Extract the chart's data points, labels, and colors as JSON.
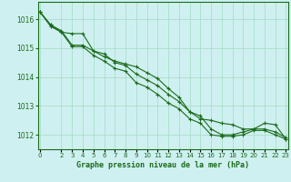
{
  "xlabel": "Graphe pression niveau de la mer (hPa)",
  "background_color": "#cff0f0",
  "grid_color": "#aaddcc",
  "line_color": "#1a6b1a",
  "x_ticks": [
    0,
    2,
    3,
    4,
    5,
    6,
    7,
    8,
    9,
    10,
    11,
    12,
    13,
    14,
    15,
    16,
    17,
    18,
    19,
    20,
    21,
    22,
    23
  ],
  "ylim": [
    1011.5,
    1016.6
  ],
  "xlim": [
    -0.2,
    23.2
  ],
  "series": [
    [
      1016.25,
      1015.8,
      1015.6,
      1015.1,
      1015.1,
      1014.9,
      1014.8,
      1014.5,
      1014.4,
      1014.1,
      1013.9,
      1013.7,
      1013.4,
      1013.15,
      1012.8,
      1012.65,
      1012.2,
      1012.0,
      1012.0,
      1012.1,
      1012.2,
      1012.2,
      1012.1,
      1011.9
    ],
    [
      1016.25,
      1015.75,
      1015.55,
      1015.05,
      1015.05,
      1014.75,
      1014.55,
      1014.3,
      1014.2,
      1013.8,
      1013.65,
      1013.4,
      1013.1,
      1012.9,
      1012.55,
      1012.4,
      1012.0,
      1011.95,
      1011.95,
      1012.0,
      1012.15,
      1012.15,
      1012.0,
      1011.85
    ],
    [
      1016.25,
      1015.8,
      1015.55,
      1015.5,
      1015.5,
      1014.9,
      1014.7,
      1014.55,
      1014.45,
      1014.35,
      1014.15,
      1013.95,
      1013.6,
      1013.3,
      1012.8,
      1012.55,
      1012.5,
      1012.4,
      1012.35,
      1012.2,
      1012.2,
      1012.4,
      1012.35,
      1011.85
    ]
  ],
  "yticks": [
    1012,
    1013,
    1014,
    1015,
    1016
  ]
}
